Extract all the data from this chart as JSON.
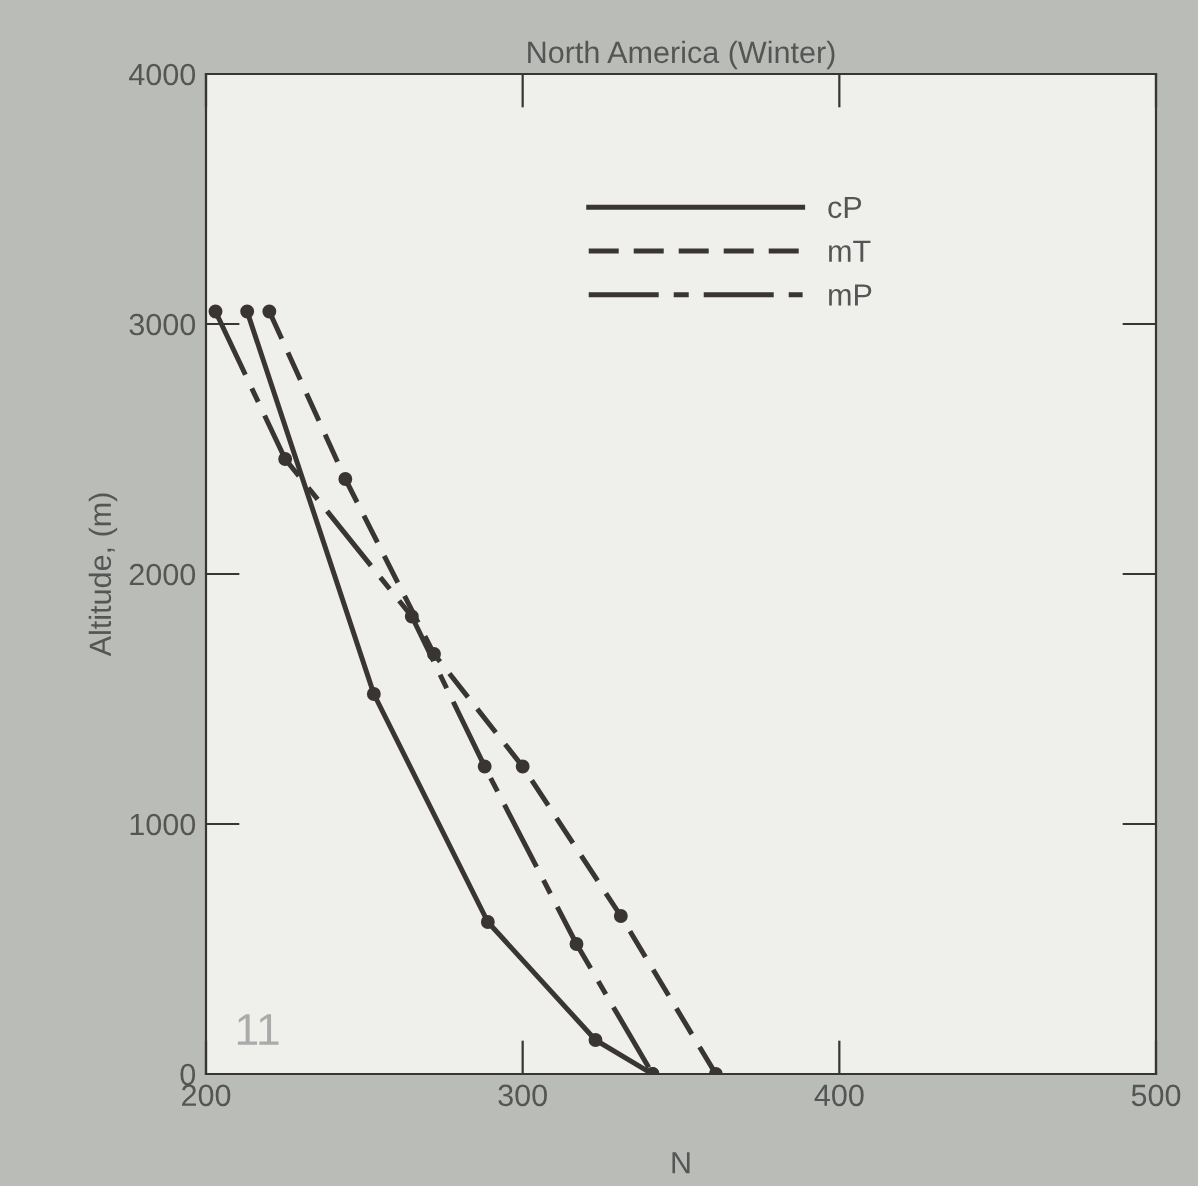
{
  "chart_data": {
    "type": "line",
    "title": "North America (Winter)",
    "xlabel": "N",
    "ylabel": "Altitude, (m)",
    "xlim": [
      200,
      500
    ],
    "xticks": [
      200,
      300,
      400,
      500
    ],
    "ylim": [
      0,
      4000
    ],
    "yticks": [
      0,
      1000,
      2000,
      3000,
      4000
    ],
    "grid": false,
    "legend": "top right",
    "marker": "circle",
    "annotations": [
      "11"
    ],
    "series": [
      {
        "name": "cP",
        "color": "#3a3535",
        "line_style": "solid",
        "x": [
          213,
          253,
          289,
          323,
          341
        ],
        "values": [
          3050,
          1520,
          608,
          136,
          0
        ]
      },
      {
        "name": "mT",
        "color": "#3a3535",
        "line_style": "dashed",
        "x": [
          220,
          244,
          272,
          300,
          331,
          361
        ],
        "values": [
          3050,
          2380,
          1680,
          1230,
          632,
          0
        ]
      },
      {
        "name": "mP",
        "color": "#3a3535",
        "line_style": "dashdot",
        "x": [
          203,
          225,
          265,
          288,
          317,
          341
        ],
        "values": [
          3050,
          2460,
          1830,
          1230,
          520,
          0
        ]
      }
    ]
  }
}
